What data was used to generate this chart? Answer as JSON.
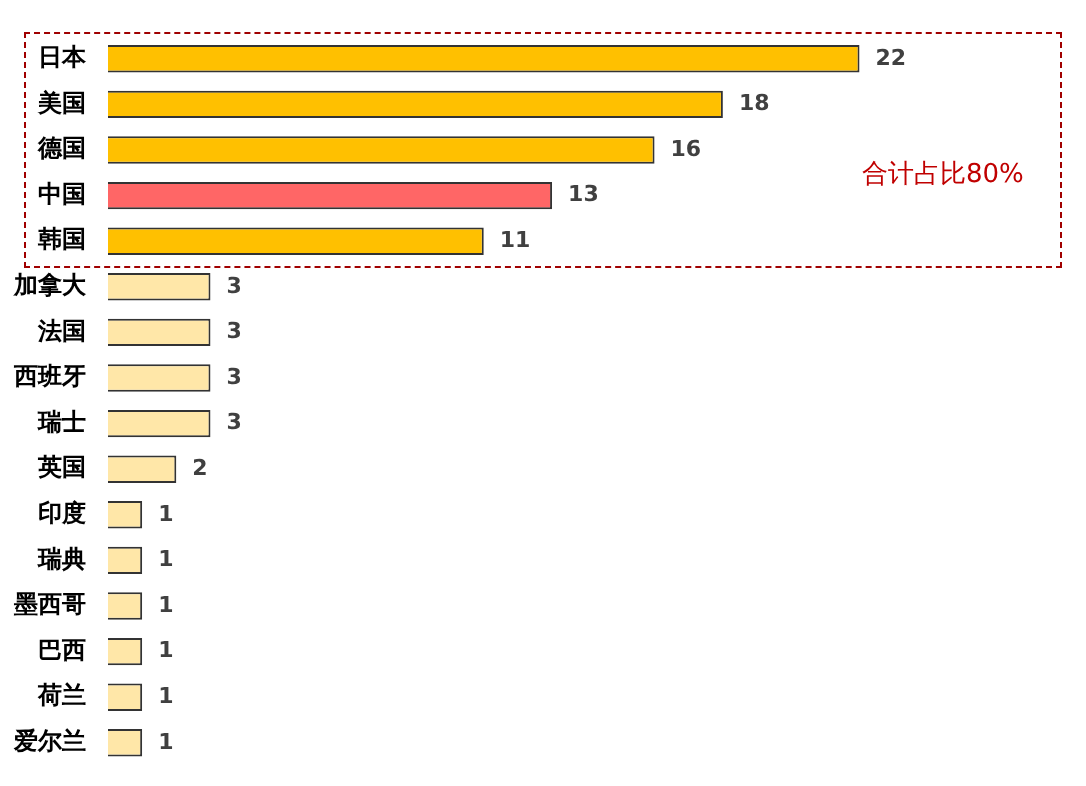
{
  "chart_data": {
    "type": "bar",
    "orientation": "horizontal",
    "categories": [
      "日本",
      "美国",
      "德国",
      "中国",
      "韩国",
      "加拿大",
      "法国",
      "西班牙",
      "瑞士",
      "英国",
      "印度",
      "瑞典",
      "墨西哥",
      "巴西",
      "荷兰",
      "爱尔兰"
    ],
    "values": [
      22,
      18,
      16,
      13,
      11,
      3,
      3,
      3,
      3,
      2,
      1,
      1,
      1,
      1,
      1,
      1
    ],
    "colors": [
      "#ffc000",
      "#ffc000",
      "#ffc000",
      "#ff6666",
      "#ffc000",
      "#ffe7a8",
      "#ffe7a8",
      "#ffe7a8",
      "#ffe7a8",
      "#ffe7a8",
      "#ffe7a8",
      "#ffe7a8",
      "#ffe7a8",
      "#ffe7a8",
      "#ffe7a8",
      "#ffe7a8"
    ],
    "data_labels": true,
    "legend": false,
    "tick_labels": "y",
    "annotations": [
      "合计占比80%"
    ]
  }
}
